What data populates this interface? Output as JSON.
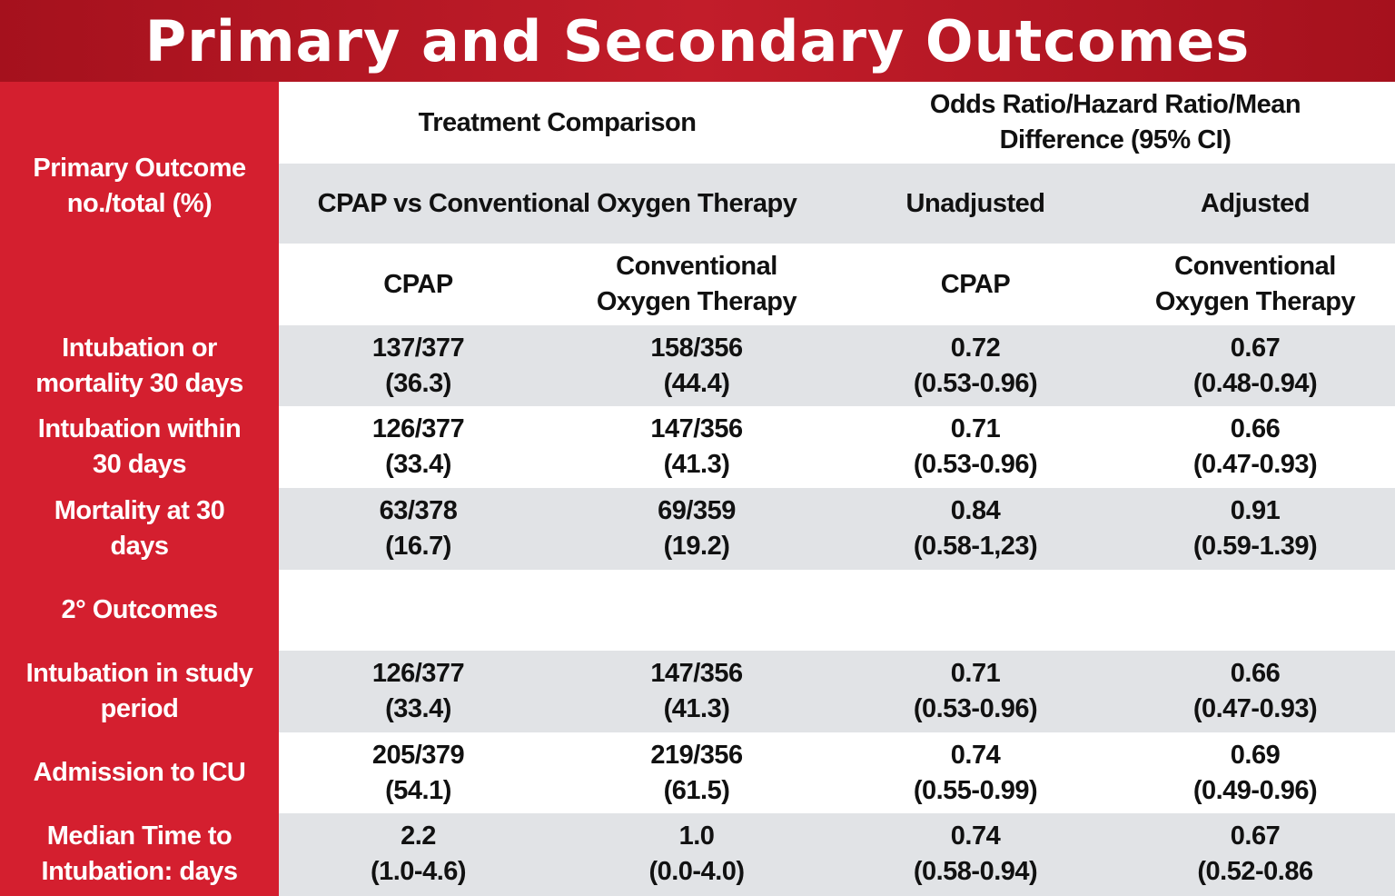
{
  "title": "Primary and Secondary Outcomes",
  "header": {
    "primary_outcome_label": "Primary Outcome\nno./total (%)",
    "treatment_comparison": "Treatment Comparison",
    "ratio_header": "Odds Ratio/Hazard Ratio/Mean\nDifference (95% CI)",
    "comparison": "CPAP vs Conventional Oxygen Therapy",
    "unadjusted": "Unadjusted",
    "adjusted": "Adjusted",
    "columns": [
      "CPAP",
      "Conventional\nOxygen Therapy",
      "CPAP",
      "Conventional\nOxygen Therapy"
    ]
  },
  "rows": [
    {
      "label": "Intubation or\nmortality 30 days",
      "cells": [
        "137/377\n(36.3)",
        "158/356\n(44.4)",
        "0.72\n(0.53-0.96)",
        "0.67\n(0.48-0.94)"
      ]
    },
    {
      "label": "Intubation within\n30 days",
      "cells": [
        "126/377\n(33.4)",
        "147/356\n(41.3)",
        "0.71\n(0.53-0.96)",
        "0.66\n(0.47-0.93)"
      ]
    },
    {
      "label": "Mortality at 30\ndays",
      "cells": [
        "63/378\n(16.7)",
        "69/359\n(19.2)",
        "0.84\n(0.58-1,23)",
        "0.91\n(0.59-1.39)"
      ]
    },
    {
      "label": "2° Outcomes",
      "cells": [
        "",
        "",
        "",
        ""
      ]
    },
    {
      "label": "Intubation in study\nperiod",
      "cells": [
        "126/377\n(33.4)",
        "147/356\n(41.3)",
        "0.71\n(0.53-0.96)",
        "0.66\n(0.47-0.93)"
      ]
    },
    {
      "label": "Admission to ICU",
      "cells": [
        "205/379\n(54.1)",
        "219/356\n(61.5)",
        "0.74\n(0.55-0.99)",
        "0.69\n(0.49-0.96)"
      ]
    },
    {
      "label": "Median Time to\nIntubation: days",
      "cells": [
        "2.2\n(1.0-4.6)",
        "1.0\n(0.0-4.0)",
        "0.74\n(0.58-0.94)",
        "0.67\n(0.52-0.86"
      ]
    }
  ],
  "colors": {
    "title_red": "#b0141f",
    "label_red": "#d41f2f",
    "stripe_gray": "#e1e3e6"
  }
}
